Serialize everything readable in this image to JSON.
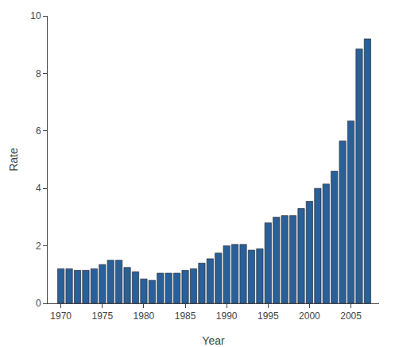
{
  "chart_data": {
    "type": "bar",
    "x": [
      1970,
      1971,
      1972,
      1973,
      1974,
      1975,
      1976,
      1977,
      1978,
      1979,
      1980,
      1981,
      1982,
      1983,
      1984,
      1985,
      1986,
      1987,
      1988,
      1989,
      1990,
      1991,
      1992,
      1993,
      1994,
      1995,
      1996,
      1997,
      1998,
      1999,
      2000,
      2001,
      2002,
      2003,
      2004,
      2005,
      2006,
      2007
    ],
    "values": [
      1.2,
      1.2,
      1.15,
      1.15,
      1.2,
      1.35,
      1.5,
      1.5,
      1.25,
      1.1,
      0.85,
      0.8,
      1.05,
      1.05,
      1.05,
      1.15,
      1.2,
      1.4,
      1.55,
      1.75,
      2.0,
      2.05,
      2.05,
      1.85,
      1.9,
      2.8,
      3.0,
      3.05,
      3.05,
      3.3,
      3.55,
      4.0,
      4.15,
      4.6,
      5.65,
      6.35,
      8.85,
      9.2
    ],
    "color": "#2a6099",
    "xlabel": "Year",
    "ylabel": "Rate",
    "xlim": [
      1968.4,
      2008.4
    ],
    "xticks": [
      1970,
      1975,
      1980,
      1985,
      1990,
      1995,
      2000,
      2005
    ],
    "ylim": [
      0,
      10
    ],
    "yticks": [
      0,
      2,
      4,
      6,
      8,
      10
    ],
    "grid": false
  }
}
